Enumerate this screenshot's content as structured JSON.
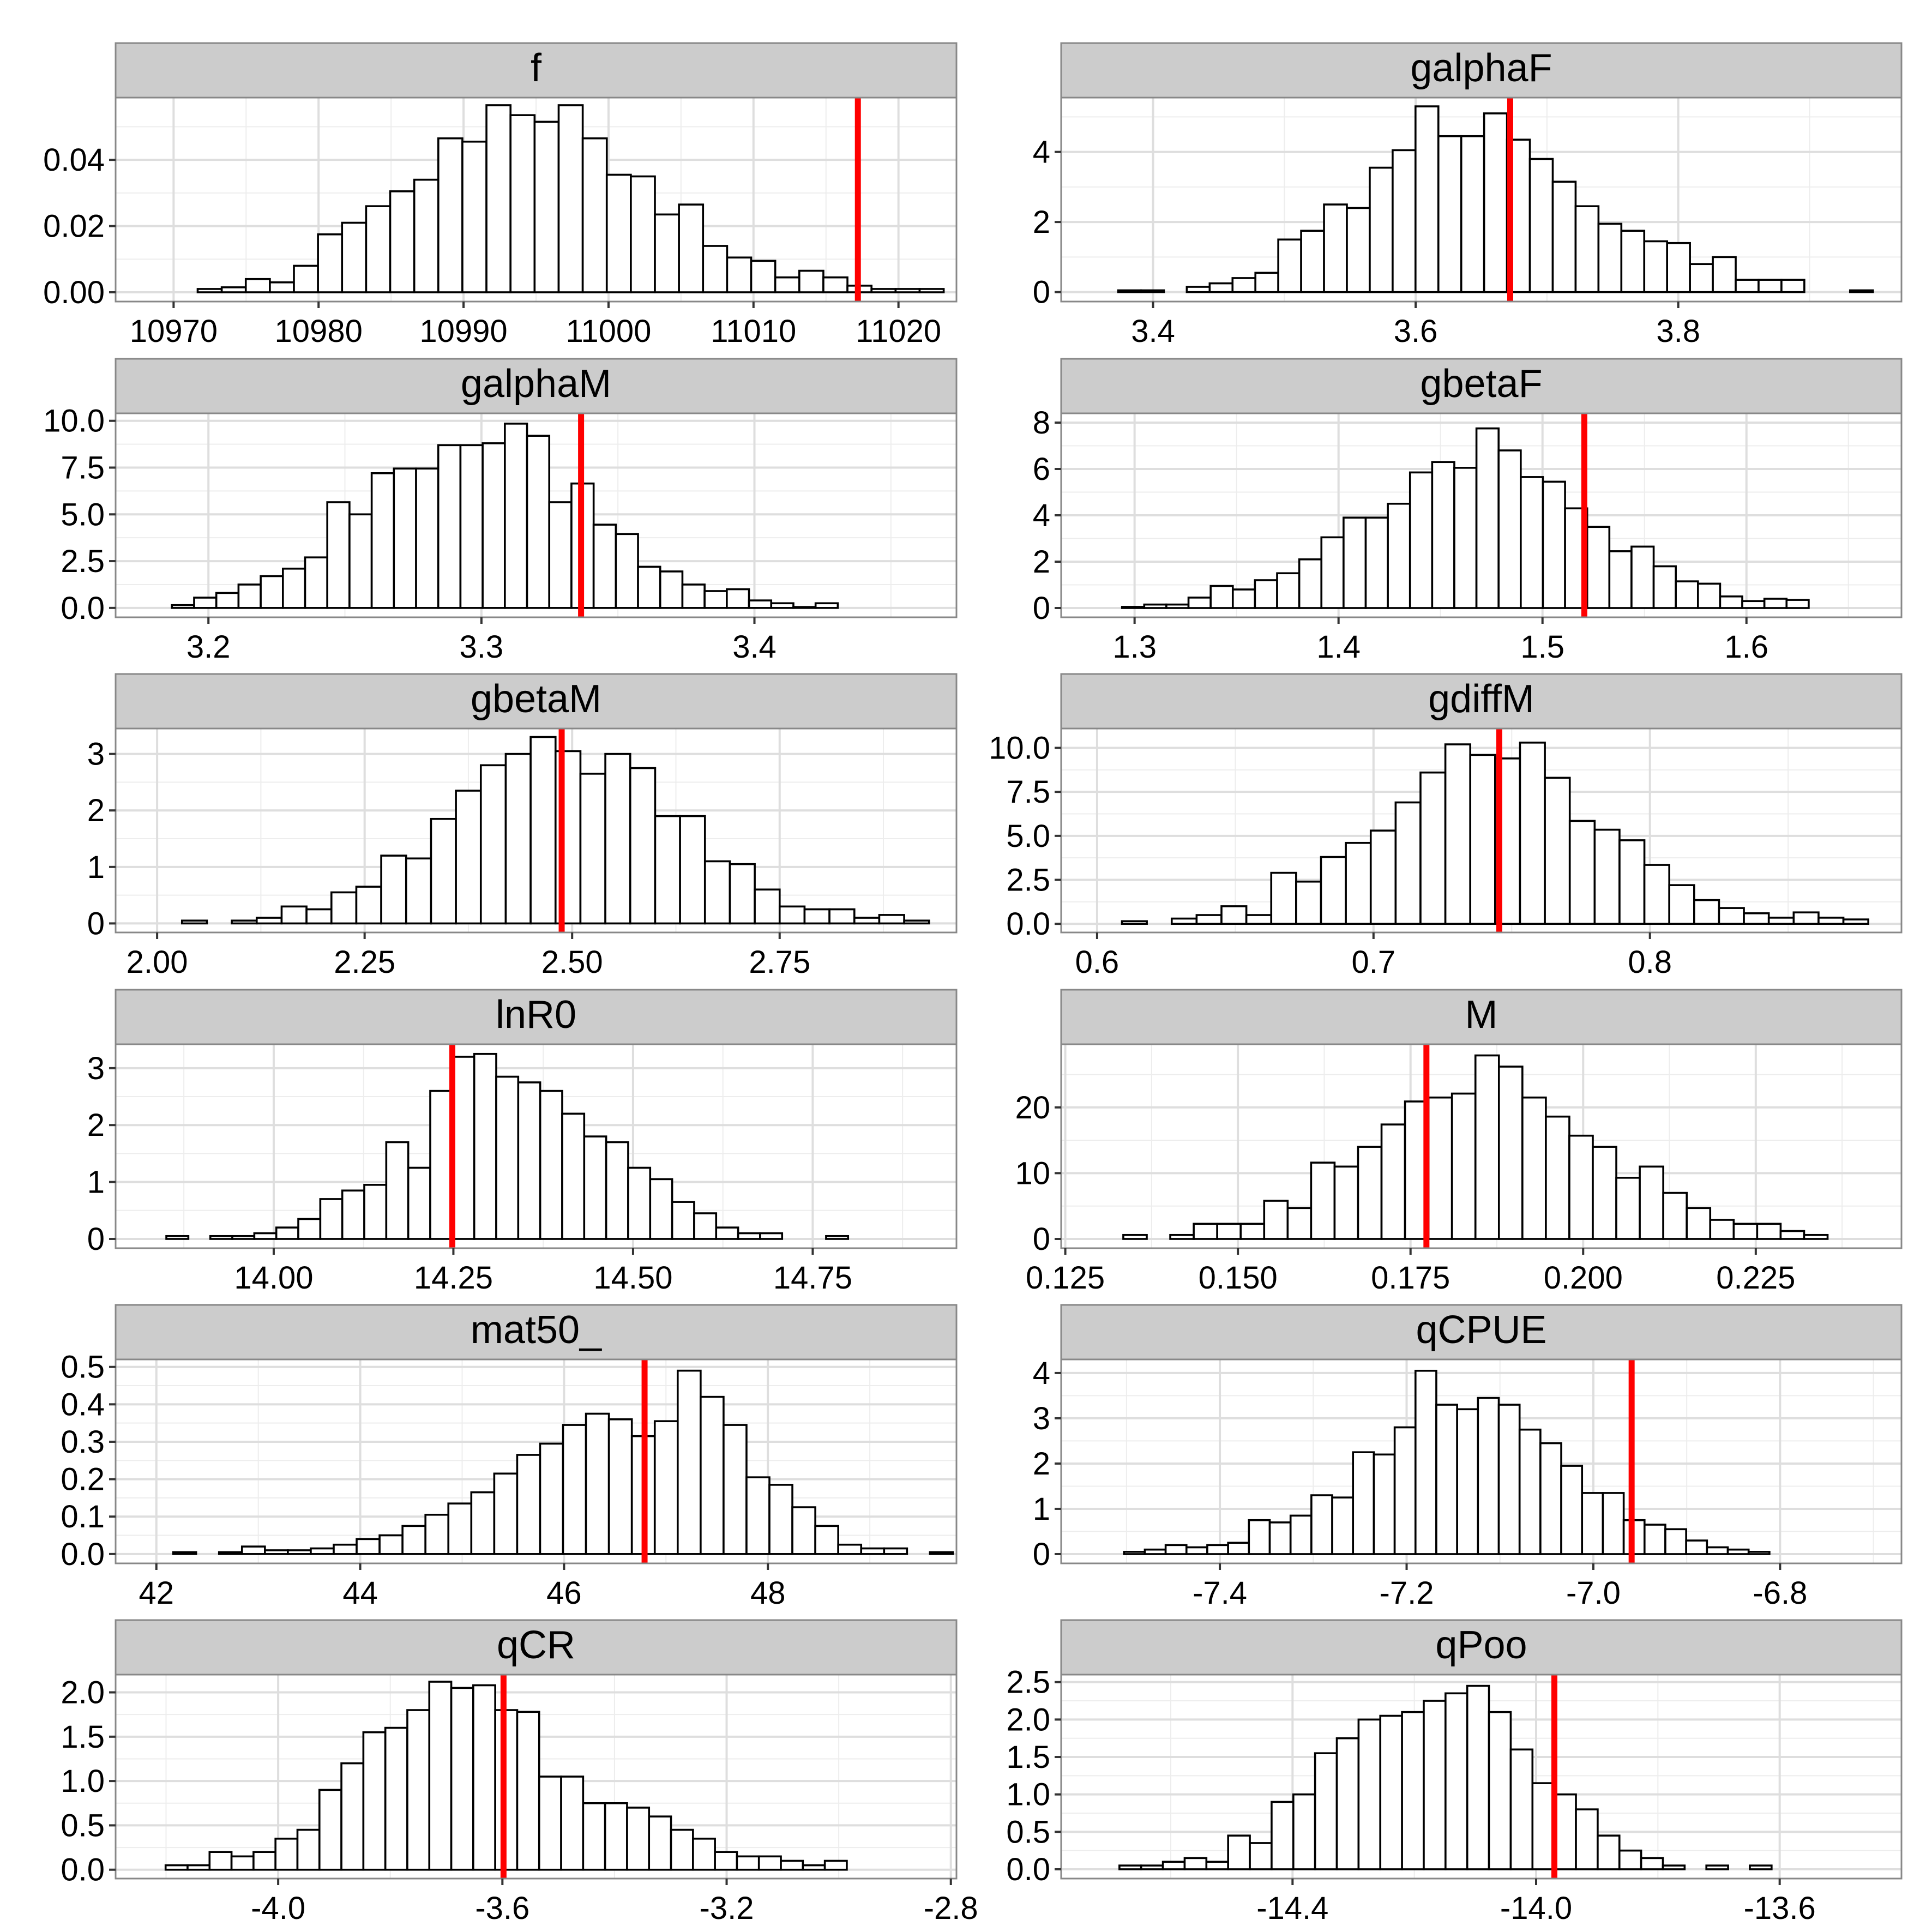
{
  "style": {
    "strip_fill": "#cccccc",
    "panel_border": "#888888",
    "grid_major": "#dedede",
    "grid_minor": "#ededed",
    "bar_fill": "#ffffff",
    "bar_stroke": "#000000",
    "estimate_line": "#ff0000",
    "text": "#000000"
  },
  "chart_data": [
    {
      "type": "histogram",
      "title": "f",
      "xlim": [
        10966,
        11024
      ],
      "ylim": [
        -0.0028,
        0.0588
      ],
      "bins": {
        "start": 10970,
        "width": 1.66,
        "heights": [
          0,
          0.001,
          0.0015,
          0.004,
          0.003,
          0.008,
          0.0175,
          0.021,
          0.026,
          0.0305,
          0.034,
          0.0465,
          0.0455,
          0.0565,
          0.0535,
          0.0515,
          0.0565,
          0.0465,
          0.0355,
          0.035,
          0.0235,
          0.0265,
          0.014,
          0.0105,
          0.0095,
          0.0045,
          0.0065,
          0.0045,
          0.002,
          0.001,
          0.001,
          0.001,
          0,
          0,
          0,
          0,
          0
        ]
      },
      "estimate": 11017.2,
      "xticks": [
        10970,
        10980,
        10990,
        11000,
        11010,
        11020
      ],
      "xtick_labels": [
        "10970",
        "10980",
        "10990",
        "11000",
        "11010",
        "11020"
      ],
      "yticks": [
        0,
        0.02,
        0.04
      ],
      "ytick_labels": [
        "0.00",
        "0.02",
        "0.04"
      ]
    },
    {
      "type": "histogram",
      "title": "galphaF",
      "xlim": [
        3.33,
        3.97
      ],
      "ylim": [
        -0.27,
        5.55
      ],
      "bins": {
        "start": 3.356,
        "width": 0.01742,
        "heights": [
          0,
          0.05,
          0.05,
          0,
          0.15,
          0.25,
          0.4,
          0.55,
          1.5,
          1.75,
          2.5,
          2.4,
          3.55,
          4.05,
          5.3,
          4.45,
          4.45,
          5.1,
          4.35,
          3.8,
          3.15,
          2.45,
          1.95,
          1.75,
          1.45,
          1.4,
          0.8,
          1.0,
          0.35,
          0.35,
          0.35,
          0,
          0,
          0.05,
          0
        ]
      },
      "estimate": 3.672,
      "xticks": [
        3.4,
        3.6,
        3.8
      ],
      "xtick_labels": [
        "3.4",
        "3.6",
        "3.8"
      ],
      "yticks": [
        0,
        2,
        4
      ],
      "ytick_labels": [
        "0",
        "2",
        "4"
      ]
    },
    {
      "type": "histogram",
      "title": "galphaM",
      "xlim": [
        3.166,
        3.474
      ],
      "ylim": [
        -0.5,
        10.4
      ],
      "bins": {
        "start": 3.1785,
        "width": 0.00813,
        "heights": [
          0,
          0.15,
          0.55,
          0.8,
          1.25,
          1.7,
          2.1,
          2.7,
          5.65,
          5.0,
          7.2,
          7.45,
          7.45,
          8.7,
          8.7,
          8.8,
          9.85,
          9.2,
          5.65,
          6.65,
          4.45,
          3.95,
          2.2,
          1.95,
          1.25,
          0.9,
          1.0,
          0.4,
          0.25,
          0.05,
          0.25,
          0,
          0,
          0
        ]
      },
      "estimate": 3.3365,
      "xticks": [
        3.2,
        3.3,
        3.4
      ],
      "xtick_labels": [
        "3.2",
        "3.3",
        "3.4"
      ],
      "yticks": [
        0,
        2.5,
        5,
        7.5,
        10
      ],
      "ytick_labels": [
        "0.0",
        "2.5",
        "5.0",
        "7.5",
        "10.0"
      ]
    },
    {
      "type": "histogram",
      "title": "gbetaF",
      "xlim": [
        1.264,
        1.676
      ],
      "ylim": [
        -0.4,
        8.4
      ],
      "bins": {
        "start": 1.283,
        "width": 0.01086,
        "heights": [
          0,
          0.05,
          0.15,
          0.15,
          0.45,
          0.95,
          0.8,
          1.2,
          1.5,
          2.1,
          3.05,
          3.9,
          3.9,
          4.5,
          5.85,
          6.3,
          6.05,
          7.75,
          6.8,
          5.65,
          5.45,
          4.3,
          3.5,
          2.45,
          2.65,
          1.8,
          1.15,
          1.05,
          0.5,
          0.3,
          0.4,
          0.35,
          0,
          0
        ]
      },
      "estimate": 1.5205,
      "xticks": [
        1.3,
        1.4,
        1.5,
        1.6
      ],
      "xtick_labels": [
        "1.3",
        "1.4",
        "1.5",
        "1.6"
      ],
      "yticks": [
        0,
        2,
        4,
        6,
        8
      ],
      "ytick_labels": [
        "0",
        "2",
        "4",
        "6",
        "8"
      ]
    },
    {
      "type": "histogram",
      "title": "gbetaM",
      "xlim": [
        1.95,
        2.963
      ],
      "ylim": [
        -0.16,
        3.45
      ],
      "bins": {
        "start": 2.0,
        "width": 0.03,
        "heights": [
          0,
          0.05,
          0,
          0.05,
          0.1,
          0.3,
          0.25,
          0.55,
          0.65,
          1.2,
          1.15,
          1.85,
          2.35,
          2.8,
          3.0,
          3.3,
          3.05,
          2.65,
          3.0,
          2.75,
          1.9,
          1.9,
          1.1,
          1.05,
          0.6,
          0.3,
          0.25,
          0.25,
          0.1,
          0.15,
          0.05,
          0
        ]
      },
      "estimate": 2.4874,
      "xticks": [
        2.0,
        2.25,
        2.5,
        2.75
      ],
      "xtick_labels": [
        "2.00",
        "2.25",
        "2.50",
        "2.75"
      ],
      "yticks": [
        0,
        1,
        2,
        3
      ],
      "ytick_labels": [
        "0",
        "1",
        "2",
        "3"
      ]
    },
    {
      "type": "histogram",
      "title": "gdiffM",
      "xlim": [
        0.587,
        0.891
      ],
      "ylim": [
        -0.49,
        11.1
      ],
      "bins": {
        "start": 0.6,
        "width": 0.009,
        "heights": [
          0,
          0.15,
          0,
          0.3,
          0.5,
          1.0,
          0.5,
          2.9,
          2.4,
          3.8,
          4.6,
          5.3,
          6.9,
          8.6,
          10.2,
          9.6,
          9.4,
          10.3,
          8.3,
          5.85,
          5.35,
          4.75,
          3.35,
          2.2,
          1.35,
          0.9,
          0.6,
          0.35,
          0.65,
          0.35,
          0.25,
          0
        ]
      },
      "estimate": 0.7455,
      "xticks": [
        0.6,
        0.7,
        0.8
      ],
      "xtick_labels": [
        "0.6",
        "0.7",
        "0.8"
      ],
      "yticks": [
        0,
        2.5,
        5,
        7.5,
        10
      ],
      "ytick_labels": [
        "0.0",
        "2.5",
        "5.0",
        "7.5",
        "10.0"
      ]
    },
    {
      "type": "histogram",
      "title": "lnR0",
      "xlim": [
        13.78,
        14.95
      ],
      "ylim": [
        -0.163,
        3.42
      ],
      "bins": {
        "start": 13.82,
        "width": 0.0306,
        "heights": [
          0,
          0.05,
          0,
          0.05,
          0.05,
          0.1,
          0.2,
          0.35,
          0.7,
          0.85,
          0.95,
          1.7,
          1.25,
          2.6,
          3.2,
          3.25,
          2.85,
          2.75,
          2.6,
          2.2,
          1.8,
          1.7,
          1.25,
          1.05,
          0.65,
          0.45,
          0.2,
          0.1,
          0.1,
          0,
          0,
          0.05,
          0
        ]
      },
      "estimate": 14.2485,
      "xticks": [
        14.0,
        14.25,
        14.5,
        14.75
      ],
      "xtick_labels": [
        "14.00",
        "14.25",
        "14.50",
        "14.75"
      ],
      "yticks": [
        0,
        1,
        2,
        3
      ],
      "ytick_labels": [
        "0",
        "1",
        "2",
        "3"
      ]
    },
    {
      "type": "histogram",
      "title": "M",
      "xlim": [
        0.1244,
        0.2461
      ],
      "ylim": [
        -1.41,
        29.6
      ],
      "bins": {
        "start": 0.13,
        "width": 0.0034,
        "heights": [
          0,
          0.6,
          0,
          0.6,
          2.3,
          2.3,
          2.3,
          5.8,
          4.7,
          11.6,
          11.0,
          14.0,
          17.4,
          20.9,
          21.5,
          22.1,
          27.9,
          26.2,
          21.5,
          18.6,
          15.7,
          14.0,
          9.3,
          11.0,
          7.0,
          4.7,
          2.9,
          2.3,
          2.3,
          1.2,
          0.6,
          0
        ]
      },
      "estimate": 0.1773,
      "xticks": [
        0.125,
        0.15,
        0.175,
        0.2,
        0.225
      ],
      "xtick_labels": [
        "0.125",
        "0.150",
        "0.175",
        "0.200",
        "0.225"
      ],
      "yticks": [
        0,
        10,
        20
      ],
      "ytick_labels": [
        "0",
        "10",
        "20"
      ]
    },
    {
      "type": "histogram",
      "title": "mat50_",
      "xlim": [
        41.6,
        49.85
      ],
      "ylim": [
        -0.025,
        0.52
      ],
      "bins": {
        "start": 41.94,
        "width": 0.225,
        "heights": [
          0,
          0.005,
          0,
          0.005,
          0.02,
          0.01,
          0.01,
          0.015,
          0.025,
          0.04,
          0.05,
          0.075,
          0.105,
          0.135,
          0.165,
          0.215,
          0.265,
          0.295,
          0.345,
          0.375,
          0.36,
          0.315,
          0.355,
          0.49,
          0.42,
          0.345,
          0.205,
          0.185,
          0.125,
          0.075,
          0.025,
          0.015,
          0.015,
          0,
          0.005,
          0
        ]
      },
      "estimate": 46.79,
      "xticks": [
        42,
        44,
        46,
        48
      ],
      "xtick_labels": [
        "42",
        "44",
        "46",
        "48"
      ],
      "yticks": [
        0,
        0.1,
        0.2,
        0.3,
        0.4,
        0.5
      ],
      "ytick_labels": [
        "0.0",
        "0.1",
        "0.2",
        "0.3",
        "0.4",
        "0.5"
      ]
    },
    {
      "type": "histogram",
      "title": "qCPUE",
      "xlim": [
        -7.57,
        -6.67
      ],
      "ylim": [
        -0.205,
        4.3
      ],
      "bins": {
        "start": -7.525,
        "width": 0.0223,
        "heights": [
          0,
          0.05,
          0.1,
          0.2,
          0.15,
          0.2,
          0.25,
          0.75,
          0.7,
          0.85,
          1.3,
          1.25,
          2.25,
          2.2,
          2.8,
          4.05,
          3.3,
          3.2,
          3.45,
          3.3,
          2.75,
          2.45,
          1.95,
          1.35,
          1.35,
          0.75,
          0.65,
          0.55,
          0.3,
          0.15,
          0.1,
          0.05,
          0
        ]
      },
      "estimate": -6.959,
      "xticks": [
        -7.4,
        -7.2,
        -7.0,
        -6.8
      ],
      "xtick_labels": [
        "-7.4",
        "-7.2",
        "-7.0",
        "-6.8"
      ],
      "yticks": [
        0,
        1,
        2,
        3,
        4
      ],
      "ytick_labels": [
        "0",
        "1",
        "2",
        "3",
        "4"
      ]
    },
    {
      "type": "histogram",
      "title": "qCR",
      "xlim": [
        -4.29,
        -2.79
      ],
      "ylim": [
        -0.1,
        2.2
      ],
      "bins": {
        "start": -4.24,
        "width": 0.0392,
        "heights": [
          0,
          0.05,
          0.05,
          0.2,
          0.15,
          0.2,
          0.35,
          0.45,
          0.9,
          1.2,
          1.55,
          1.6,
          1.8,
          2.12,
          2.05,
          2.08,
          1.8,
          1.78,
          1.05,
          1.05,
          0.75,
          0.75,
          0.7,
          0.6,
          0.45,
          0.35,
          0.2,
          0.15,
          0.15,
          0.1,
          0.05,
          0.1,
          0
        ]
      },
      "estimate": -3.598,
      "xticks": [
        -4.0,
        -3.6,
        -3.2,
        -2.8
      ],
      "xtick_labels": [
        "-4.0",
        "-3.6",
        "-3.2",
        "-2.8"
      ],
      "yticks": [
        0,
        0.5,
        1,
        1.5,
        2
      ],
      "ytick_labels": [
        "0.0",
        "0.5",
        "1.0",
        "1.5",
        "2.0"
      ]
    },
    {
      "type": "histogram",
      "title": "qPoo",
      "xlim": [
        -14.78,
        -13.4
      ],
      "ylim": [
        -0.124,
        2.6
      ],
      "bins": {
        "start": -14.72,
        "width": 0.0357,
        "heights": [
          0,
          0.05,
          0.05,
          0.1,
          0.15,
          0.1,
          0.45,
          0.35,
          0.9,
          1.0,
          1.55,
          1.75,
          2.0,
          2.05,
          2.1,
          2.25,
          2.35,
          2.45,
          2.1,
          1.6,
          1.15,
          1.0,
          0.8,
          0.45,
          0.25,
          0.15,
          0.05,
          0,
          0.05,
          0,
          0.05,
          0
        ]
      },
      "estimate": -13.97,
      "xticks": [
        -14.4,
        -14.0,
        -13.6
      ],
      "xtick_labels": [
        "-14.4",
        "-14.0",
        "-13.6"
      ],
      "yticks": [
        0,
        0.5,
        1,
        1.5,
        2,
        2.5
      ],
      "ytick_labels": [
        "0.0",
        "0.5",
        "1.0",
        "1.5",
        "2.0",
        "2.5"
      ]
    }
  ]
}
